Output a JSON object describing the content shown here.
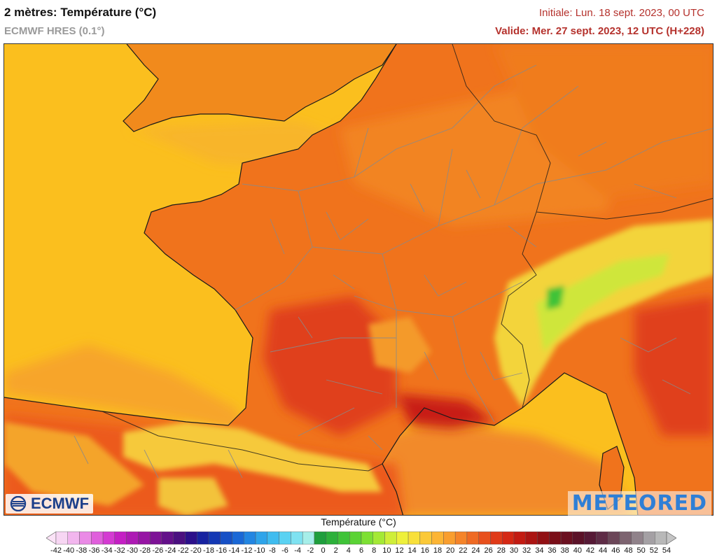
{
  "header": {
    "title": "2 mètres: Température (°C)",
    "model": "ECMWF HRES (0.1°)",
    "initial": "Initiale: Lun. 18 sept. 2023, 00 UTC",
    "valid": "Valide: Mer. 27 sept. 2023, 12 UTC (H+228)"
  },
  "logos": {
    "left": "ECMWF",
    "right": "METEORED"
  },
  "legend": {
    "title": "Température (°C)",
    "ticks": [
      -42,
      -40,
      -38,
      -36,
      -34,
      -32,
      -30,
      -28,
      -26,
      -24,
      -22,
      -20,
      -18,
      -16,
      -14,
      -12,
      -10,
      -8,
      -6,
      -4,
      -2,
      0,
      2,
      4,
      6,
      8,
      10,
      12,
      14,
      16,
      18,
      20,
      22,
      24,
      26,
      28,
      30,
      32,
      34,
      36,
      38,
      40,
      42,
      44,
      46,
      48,
      50,
      52,
      54
    ],
    "colors": [
      "#f7d6f3",
      "#f2b6ee",
      "#ea8ae6",
      "#e05fdc",
      "#d43ad2",
      "#c41fc4",
      "#ad19b4",
      "#9614a4",
      "#7d1296",
      "#64108a",
      "#4b0f80",
      "#2b0f8a",
      "#1722a0",
      "#1438b4",
      "#1650c6",
      "#1a68d6",
      "#2286e2",
      "#2ea4ea",
      "#3fbcef",
      "#5ad2f2",
      "#7fe2f1",
      "#a6eee9",
      "#1e9e3c",
      "#2cb03a",
      "#3fc338",
      "#5bd335",
      "#7de033",
      "#a4e935",
      "#cfee39",
      "#eef03b",
      "#f8e03a",
      "#fbc937",
      "#fcb534",
      "#f99e2e",
      "#f58429",
      "#ef6a23",
      "#e8501d",
      "#e03a18",
      "#d52814",
      "#c31b12",
      "#ab1412",
      "#911014",
      "#7a0e18",
      "#6b1020",
      "#5b1228",
      "#561a36",
      "#5e2c46",
      "#6b4658",
      "#7d6470",
      "#90828a",
      "#a4a0a4",
      "#b8b8b8"
    ]
  }
}
